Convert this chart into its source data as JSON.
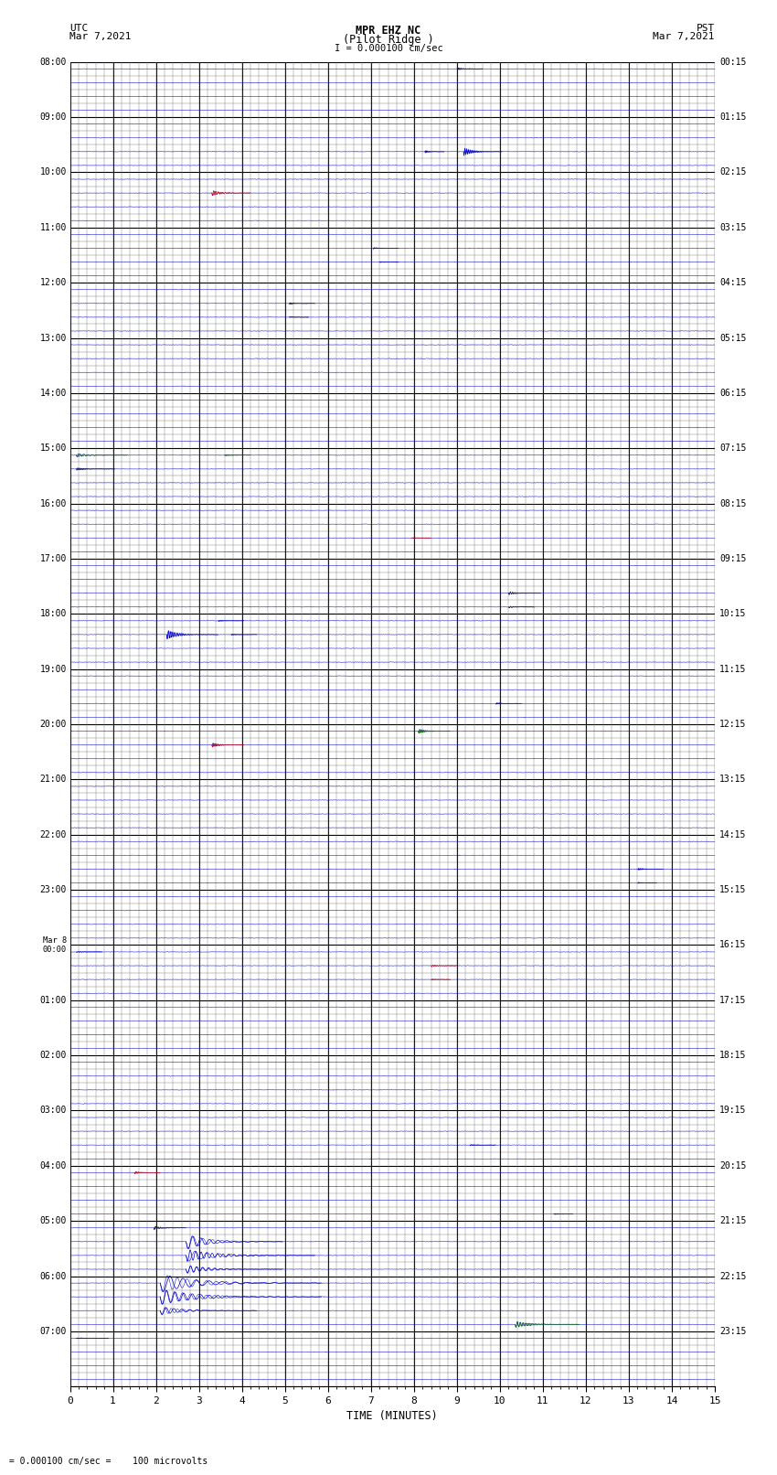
{
  "title_line1": "MPR EHZ NC",
  "title_line2": "(Pilot Ridge )",
  "scale_text": "I = 0.000100 cm/sec",
  "bottom_text": "= 0.000100 cm/sec =    100 microvolts",
  "left_label_line1": "UTC",
  "left_label_line2": "Mar 7,2021",
  "right_label_line1": "PST",
  "right_label_line2": "Mar 7,2021",
  "xlabel": "TIME (MINUTES)",
  "utc_times": [
    "08:00",
    "09:00",
    "10:00",
    "11:00",
    "12:00",
    "13:00",
    "14:00",
    "15:00",
    "16:00",
    "17:00",
    "18:00",
    "19:00",
    "20:00",
    "21:00",
    "22:00",
    "23:00",
    "Mar 8\n00:00",
    "01:00",
    "02:00",
    "03:00",
    "04:00",
    "05:00",
    "06:00",
    "07:00"
  ],
  "pst_times": [
    "00:15",
    "01:15",
    "02:15",
    "03:15",
    "04:15",
    "05:15",
    "06:15",
    "07:15",
    "08:15",
    "09:15",
    "10:15",
    "11:15",
    "12:15",
    "13:15",
    "14:15",
    "15:15",
    "16:15",
    "17:15",
    "18:15",
    "19:15",
    "20:15",
    "21:15",
    "22:15",
    "23:15"
  ],
  "num_rows": 24,
  "sub_rows": 4,
  "bg_color": "#ffffff",
  "major_grid_color": "#000000",
  "minor_grid_color": "#777777",
  "trace_color": "#0000cc",
  "figsize": [
    8.5,
    16.13
  ],
  "dpi": 100
}
